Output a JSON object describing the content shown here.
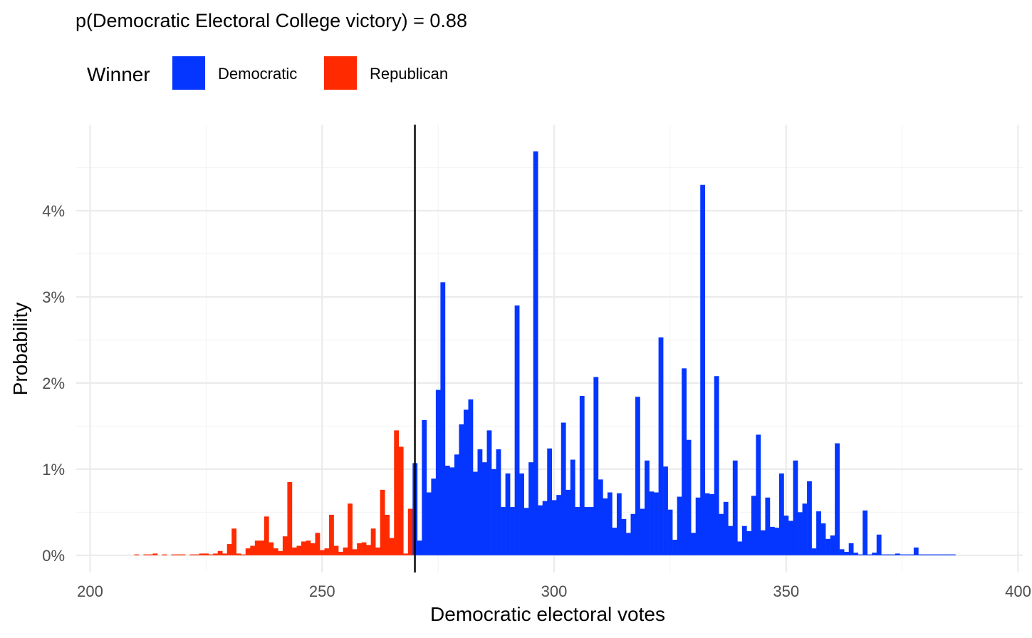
{
  "chart_data": {
    "type": "bar",
    "title": "p(Democratic Electoral College victory) = 0.88",
    "xlabel": "Democratic electoral votes",
    "ylabel": "Probability",
    "xlim": [
      197,
      401
    ],
    "ylim": [
      -0.002,
      0.05
    ],
    "x_ticks": [
      200,
      250,
      300,
      350,
      400
    ],
    "x_tick_labels": [
      "200",
      "250",
      "300",
      "350",
      "400"
    ],
    "y_ticks": [
      0,
      0.01,
      0.02,
      0.03,
      0.04
    ],
    "y_tick_labels": [
      "0%",
      "1%",
      "2%",
      "3%",
      "4%"
    ],
    "reference_line_x": 270,
    "grid": true,
    "legend": {
      "title": "Winner",
      "position": "top-left",
      "entries": [
        {
          "label": "Democratic",
          "color": "#0536ff"
        },
        {
          "label": "Republican",
          "color": "#ff2a00"
        }
      ]
    },
    "series": [
      {
        "name": "Republican",
        "color": "#ff2a00",
        "x": [
          210,
          212,
          213,
          214,
          216,
          218,
          219,
          220,
          222,
          223,
          224,
          225,
          226,
          227,
          228,
          229,
          230,
          231,
          232,
          233,
          234,
          235,
          236,
          237,
          238,
          239,
          240,
          241,
          242,
          243,
          244,
          245,
          246,
          247,
          248,
          249,
          250,
          251,
          252,
          253,
          254,
          255,
          256,
          257,
          258,
          259,
          260,
          261,
          262,
          263,
          264,
          265,
          266,
          267,
          268,
          269
        ],
        "values": [
          0.0001,
          0.0001,
          0.0001,
          0.0002,
          0.0001,
          0.0001,
          0.0001,
          0.0001,
          0.0001,
          0.0001,
          0.0002,
          0.0002,
          0.0001,
          0.0002,
          0.0005,
          0.0002,
          0.0013,
          0.0031,
          0.0002,
          0.0001,
          0.0008,
          0.0011,
          0.0017,
          0.0017,
          0.0045,
          0.0015,
          0.0008,
          0.0005,
          0.0022,
          0.0085,
          0.0009,
          0.0011,
          0.0016,
          0.0017,
          0.0014,
          0.0026,
          0.0006,
          0.0008,
          0.0047,
          0.0011,
          0.0004,
          0.0009,
          0.006,
          0.0007,
          0.0014,
          0.0015,
          0.0012,
          0.0031,
          0.0009,
          0.0076,
          0.0047,
          0.002,
          0.0145,
          0.0126,
          0.0002,
          0.0054
        ]
      },
      {
        "name": "Democratic",
        "color": "#0536ff",
        "x": [
          270,
          271,
          272,
          273,
          274,
          275,
          276,
          277,
          278,
          279,
          280,
          281,
          282,
          283,
          284,
          285,
          286,
          287,
          288,
          289,
          290,
          291,
          292,
          293,
          294,
          295,
          296,
          297,
          298,
          299,
          300,
          301,
          302,
          303,
          304,
          305,
          306,
          307,
          308,
          309,
          310,
          311,
          312,
          313,
          314,
          315,
          316,
          317,
          318,
          319,
          320,
          321,
          322,
          323,
          324,
          325,
          326,
          327,
          328,
          329,
          330,
          331,
          332,
          333,
          334,
          335,
          336,
          337,
          338,
          339,
          340,
          341,
          342,
          343,
          344,
          345,
          346,
          347,
          348,
          349,
          350,
          351,
          352,
          353,
          354,
          355,
          356,
          357,
          358,
          359,
          360,
          361,
          362,
          363,
          364,
          365,
          366,
          367,
          368,
          369,
          370,
          371,
          372,
          373,
          374,
          375,
          376,
          377,
          378,
          379,
          380,
          381,
          382,
          383,
          384,
          385,
          386
        ],
        "values": [
          0.0107,
          0.0017,
          0.0157,
          0.0073,
          0.0089,
          0.0192,
          0.0317,
          0.0104,
          0.0102,
          0.0117,
          0.0152,
          0.0169,
          0.0181,
          0.0097,
          0.0123,
          0.0108,
          0.0145,
          0.01,
          0.0123,
          0.0056,
          0.0095,
          0.0056,
          0.029,
          0.0095,
          0.0055,
          0.0108,
          0.0469,
          0.0058,
          0.0063,
          0.0124,
          0.0064,
          0.007,
          0.0154,
          0.0076,
          0.0111,
          0.0056,
          0.0185,
          0.0056,
          0.0056,
          0.0207,
          0.0088,
          0.0066,
          0.0073,
          0.0032,
          0.0072,
          0.0042,
          0.0026,
          0.0048,
          0.0184,
          0.0054,
          0.011,
          0.0074,
          0.0073,
          0.0253,
          0.0103,
          0.0053,
          0.0018,
          0.0068,
          0.0217,
          0.0134,
          0.0026,
          0.0067,
          0.043,
          0.0072,
          0.0071,
          0.0208,
          0.0048,
          0.0062,
          0.0034,
          0.011,
          0.0016,
          0.0034,
          0.0028,
          0.0069,
          0.014,
          0.0029,
          0.0067,
          0.0033,
          0.0032,
          0.0095,
          0.0046,
          0.004,
          0.011,
          0.005,
          0.006,
          0.0086,
          0.0008,
          0.0051,
          0.0037,
          0.0019,
          0.0023,
          0.013,
          0.0007,
          0.0004,
          0.0014,
          0.0003,
          0.0001,
          0.0052,
          0.0001,
          0.0003,
          0.0024,
          0.0001,
          0.0001,
          0.0001,
          0.0002,
          0.0001,
          0.0001,
          0.0001,
          0.0009,
          0.0001,
          0.0001,
          0.0001,
          0.0001,
          0.0001,
          0.0001,
          0.0001,
          0.0001
        ]
      }
    ]
  }
}
